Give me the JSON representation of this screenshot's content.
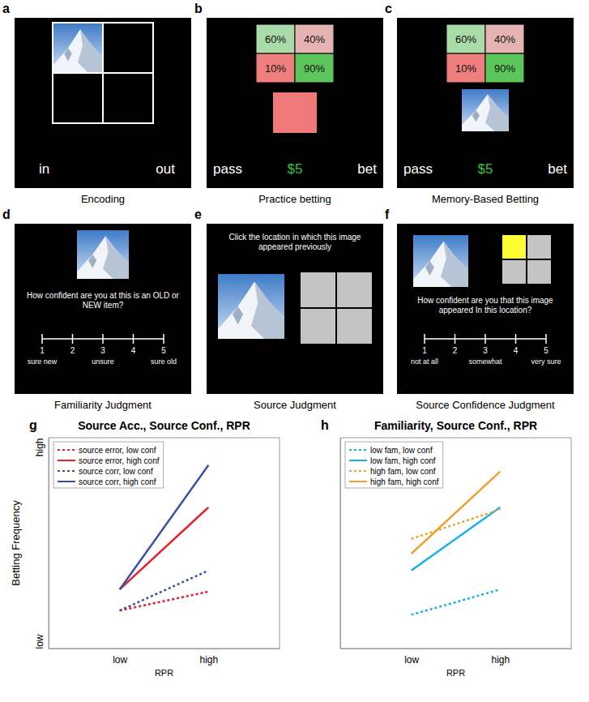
{
  "panels": [
    {
      "letter": "a",
      "caption": "Encoding",
      "left_label": "in",
      "right_label": "out"
    },
    {
      "letter": "b",
      "caption": "Practice betting",
      "cells": [
        "60%",
        "40%",
        "10%",
        "90%"
      ],
      "left_label": "pass",
      "amount": "$5",
      "right_label": "bet"
    },
    {
      "letter": "c",
      "caption": "Memory-Based Betting",
      "cells": [
        "60%",
        "40%",
        "10%",
        "90%"
      ],
      "left_label": "pass",
      "amount": "$5",
      "right_label": "bet"
    },
    {
      "letter": "d",
      "caption": "Familiarity Judgment",
      "prompt": "How confident are you at this is an OLD or NEW item?",
      "scale": [
        1,
        2,
        3,
        4,
        5
      ],
      "scale_labels": [
        "sure new",
        null,
        "unsure",
        null,
        "sure old"
      ]
    },
    {
      "letter": "e",
      "caption": "Source Judgment",
      "prompt": "Click the location in which this image appeared previously"
    },
    {
      "letter": "f",
      "caption": "Source Confidence Judgment",
      "prompt": "How confident are you that this image appeared In this location?",
      "scale": [
        1,
        2,
        3,
        4,
        5
      ],
      "scale_labels": [
        "not at all",
        null,
        "somewhat",
        null,
        "very sure"
      ]
    }
  ],
  "chart_data": [
    {
      "type": "line",
      "letter": "g",
      "title": "Source Acc., Source Conf., RPR",
      "x_label": "RPR",
      "y_label": "Betting Frequency",
      "categories": [
        "low",
        "high"
      ],
      "ylim": [
        0,
        1
      ],
      "yticks": [
        {
          "value": 0,
          "label": "low"
        },
        {
          "value": 1,
          "label": "high"
        }
      ],
      "legend": "upper left",
      "series": [
        {
          "name": "source error, low conf",
          "color": "#e5202b",
          "line_style": "dotted",
          "values": [
            0.18,
            0.27
          ]
        },
        {
          "name": "source error, high conf",
          "color": "#e5202b",
          "line_style": "solid",
          "values": [
            0.28,
            0.67
          ]
        },
        {
          "name": "source corr, low conf",
          "color": "#3a4fa3",
          "line_style": "dotted",
          "values": [
            0.18,
            0.37
          ]
        },
        {
          "name": "source corr, high conf",
          "color": "#3a4fa3",
          "line_style": "solid",
          "values": [
            0.28,
            0.87
          ]
        }
      ]
    },
    {
      "type": "line",
      "letter": "h",
      "title": "Familiarity, Source Conf., RPR",
      "x_label": "RPR",
      "categories": [
        "low",
        "high"
      ],
      "ylim": [
        0,
        1
      ],
      "tick_labels": "x",
      "legend": "upper left",
      "series": [
        {
          "name": "low fam, low conf",
          "color": "#1ab0e8",
          "line_style": "dotted",
          "values": [
            0.16,
            0.28
          ]
        },
        {
          "name": "low fam, high conf",
          "color": "#1ab0e8",
          "line_style": "solid",
          "values": [
            0.37,
            0.67
          ]
        },
        {
          "name": "high fam, low conf",
          "color": "#f0a030",
          "line_style": "dotted",
          "values": [
            0.52,
            0.66
          ]
        },
        {
          "name": "high fam, high conf",
          "color": "#f0a030",
          "line_style": "solid",
          "values": [
            0.45,
            0.84
          ]
        }
      ]
    }
  ]
}
